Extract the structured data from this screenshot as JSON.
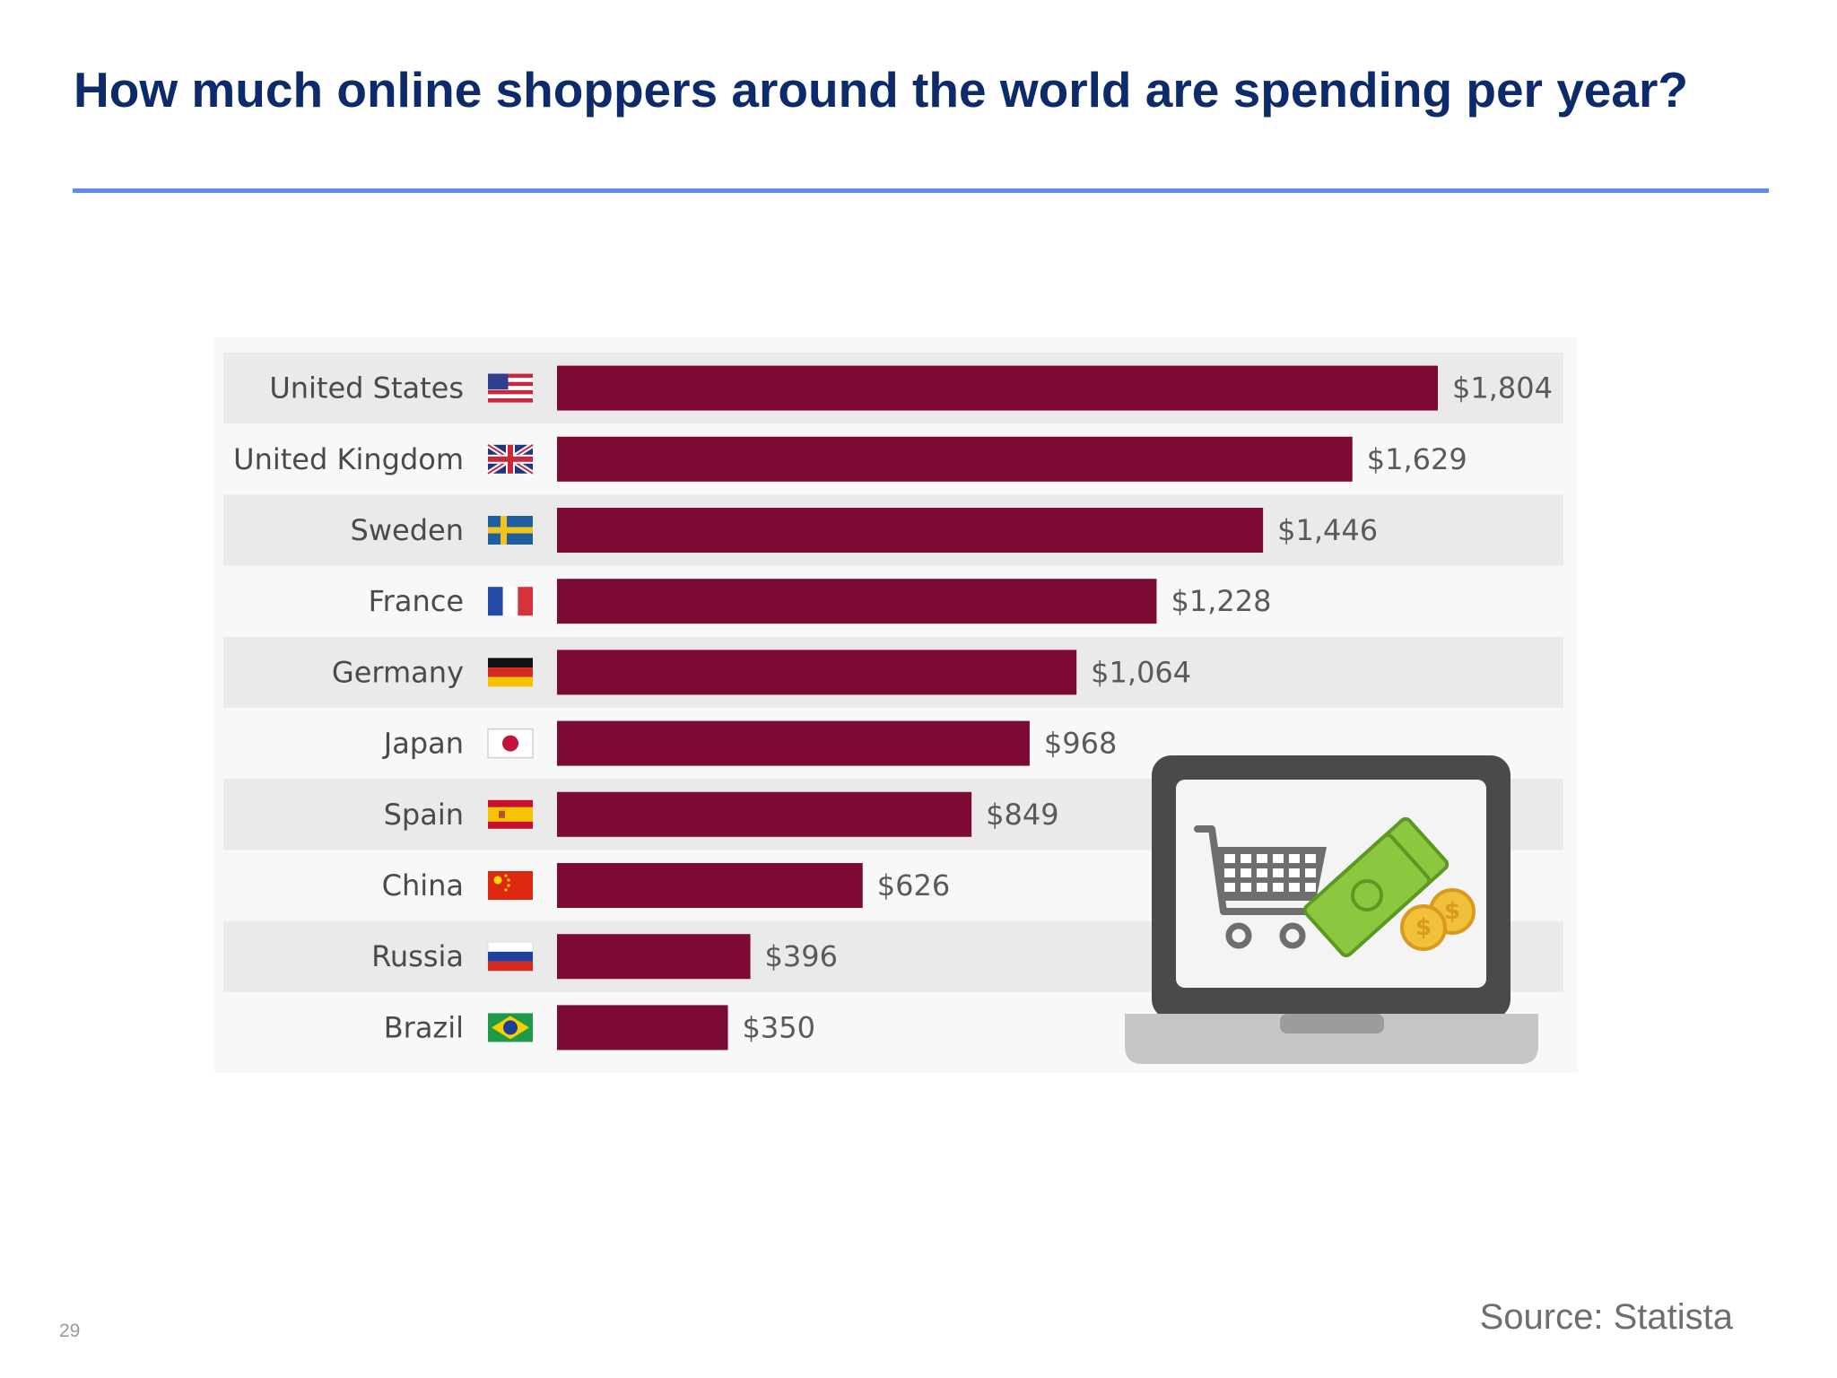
{
  "slide": {
    "title": "How much online shoppers around the world are spending per year?",
    "source": "Source: Statista",
    "page_number": "29"
  },
  "chart_data": {
    "type": "bar",
    "orientation": "horizontal",
    "categories": [
      "United States",
      "United Kingdom",
      "Sweden",
      "France",
      "Germany",
      "Japan",
      "Spain",
      "China",
      "Russia",
      "Brazil"
    ],
    "values": [
      1804,
      1629,
      1446,
      1228,
      1064,
      968,
      849,
      626,
      396,
      350
    ],
    "value_labels": [
      "$1,804",
      "$1,629",
      "$1,446",
      "$1,228",
      "$1,064",
      "$968",
      "$849",
      "$626",
      "$396",
      "$350"
    ],
    "flags": [
      "us",
      "uk",
      "sweden",
      "france",
      "germany",
      "japan",
      "spain",
      "china",
      "russia",
      "brazil"
    ],
    "title": "",
    "xlabel": "",
    "ylabel": "",
    "xlim": [
      0,
      1804
    ],
    "grid": false,
    "legend": "none",
    "illustration": [
      "laptop-icon",
      "shopping-cart-icon",
      "cash-icon",
      "coin-icon"
    ],
    "colors": {
      "bar": "#7d0a35",
      "row_band": "#eaeaea",
      "label": "#4a4a4a",
      "value_label": "#5a5a5a"
    }
  }
}
